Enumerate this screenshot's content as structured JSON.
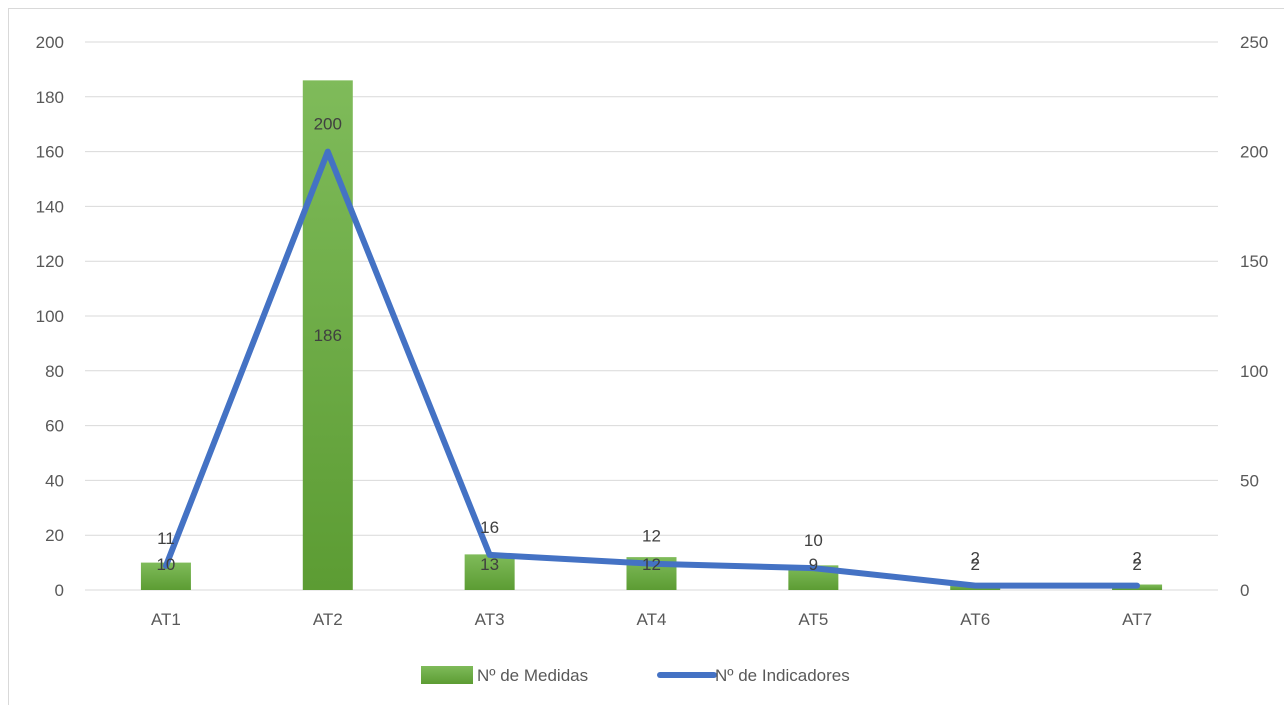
{
  "chart_data": {
    "type": "bar",
    "categories": [
      "AT1",
      "AT2",
      "AT3",
      "AT4",
      "AT5",
      "AT6",
      "AT7"
    ],
    "series": [
      {
        "name": "Nº de Medidas",
        "type": "bar",
        "axis": "left",
        "values": [
          10,
          186,
          13,
          12,
          9,
          2,
          2
        ],
        "color": "#70ad47"
      },
      {
        "name": "Nº de Indicadores",
        "type": "line",
        "axis": "right",
        "values": [
          11,
          200,
          16,
          12,
          10,
          2,
          2
        ],
        "color": "#4472c4"
      }
    ],
    "ylim_left": [
      0,
      200
    ],
    "yticks_left": [
      0,
      20,
      40,
      60,
      80,
      100,
      120,
      140,
      160,
      180,
      200
    ],
    "ylim_right": [
      0,
      250
    ],
    "yticks_right": [
      0,
      50,
      100,
      150,
      200,
      250
    ],
    "grid": true,
    "legend_position": "bottom",
    "title": "",
    "xlabel": "",
    "ylabel": ""
  }
}
